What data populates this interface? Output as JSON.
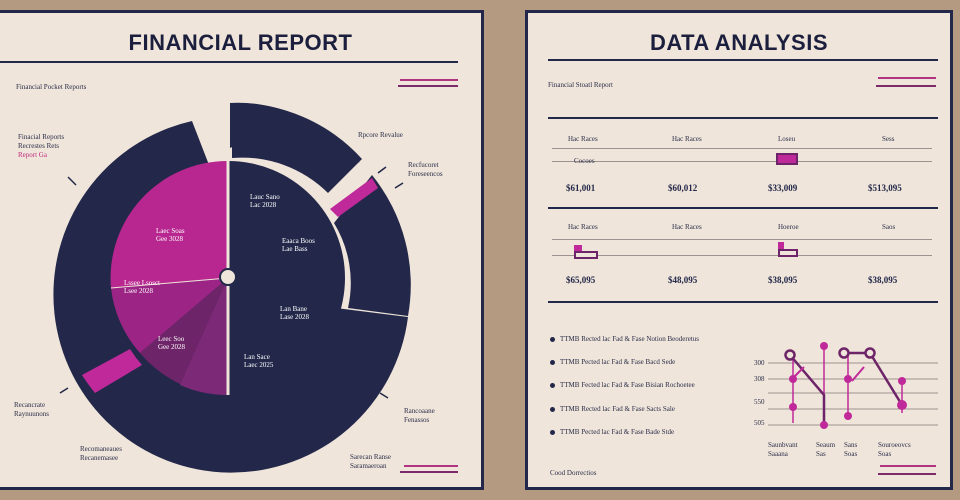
{
  "left": {
    "title": "FINANCIAL REPORT",
    "subtitle": "Financial Pocket Reports",
    "callouts": [
      {
        "l1": "Finacial Reports",
        "l2": "Recrestes Rets",
        "l3": "Report Ga"
      },
      {
        "l1": "Rpcore Revalue",
        "l2": ""
      },
      {
        "l1": "Recfucoret",
        "l2": "Foreseencos"
      },
      {
        "l1": "Recancrate",
        "l2": "Raynuunons"
      },
      {
        "l1": "Recomaneaues",
        "l2": "Recanemasee"
      },
      {
        "l1": "Rancoaane",
        "l2": "Fenassos"
      },
      {
        "l1": "Sarecan Ranse",
        "l2": "Saramaeroan"
      }
    ],
    "wedge_labels": [
      {
        "l1": "Lauc Sano",
        "l2": "Lac 2028"
      },
      {
        "l1": "Eaaca Boos",
        "l2": "Lae Bass"
      },
      {
        "l1": "Laec Soas",
        "l2": "Gee 3028"
      },
      {
        "l1": "Lan Bane",
        "l2": "Lase 2028"
      },
      {
        "l1": "Lssee Lsosct",
        "l2": "Lsee 2028"
      },
      {
        "l1": "Leec Soo",
        "l2": "Gee 2028"
      },
      {
        "l1": "Lan Sace",
        "l2": "Laec 2025"
      }
    ]
  },
  "right": {
    "title": "DATA ANALYSIS",
    "subtitle": "Financial Stoatl Report",
    "row1": {
      "headers": [
        "Hac Races",
        "Hac Races",
        "Loseu",
        "Sess"
      ],
      "sublabel": "Cocoes",
      "values": [
        "$61,001",
        "$60,012",
        "$33,009",
        "$513,095"
      ]
    },
    "row2": {
      "headers": [
        "Hac Races",
        "Hac Races",
        "Hoeroe",
        "Saos"
      ],
      "values": [
        "$65,095",
        "$48,095",
        "$38,095",
        "$38,095"
      ]
    },
    "bullets": [
      "TTMB Rected lac Fad & Fase Notion Beoderetus",
      "TTMB Pected lac Fad & Fase Bacd Sede",
      "TTMB Fected lac Fad & Fase Bisian Rochoetee",
      "TTMB Rected lac Fad & Fase Sacts Sale",
      "TTMB Pected lac Fad & Fase Bade Stde"
    ],
    "chart_labels": {
      "y": [
        "300",
        "308",
        "550",
        "505"
      ],
      "x": [
        "Saunbvant",
        "Seaum",
        "Sans",
        "Souroeovcs"
      ],
      "x2": [
        "Saaana",
        "Sas",
        "Soas",
        "Soas"
      ]
    },
    "footer": "Cood Dorrectios"
  },
  "colors": {
    "navy": "#23284a",
    "magenta": "#c0299a",
    "plum": "#7a2474",
    "background": "#efe5da"
  }
}
